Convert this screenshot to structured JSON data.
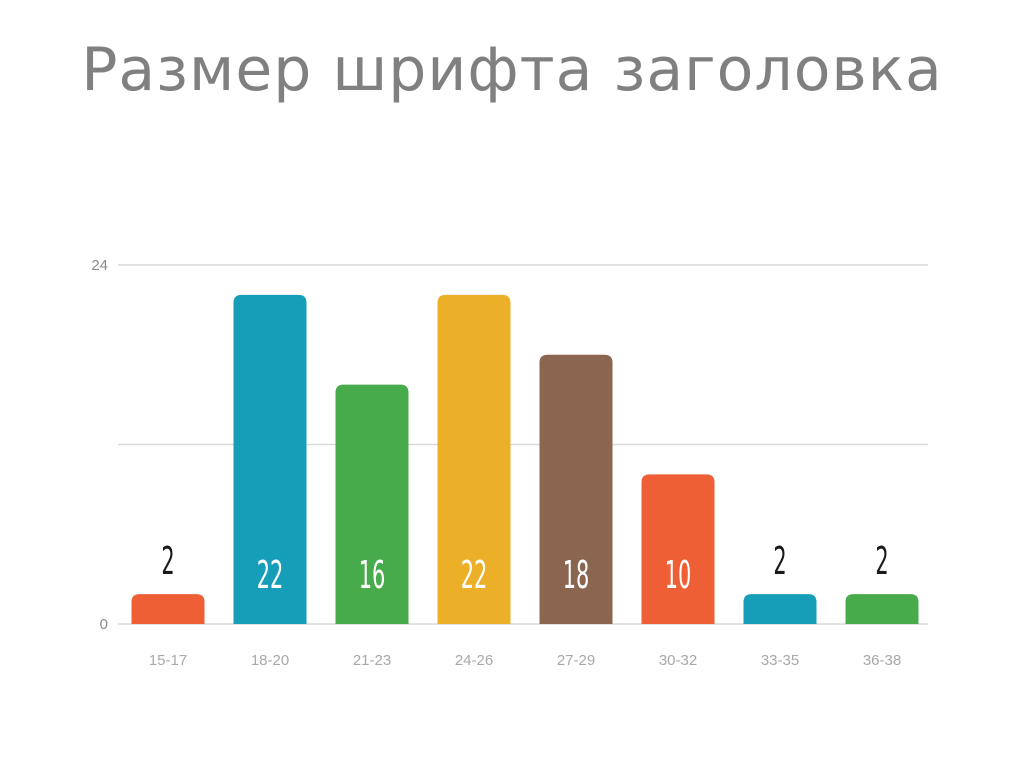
{
  "slide": {
    "title": "Размер шрифта заголовка"
  },
  "chart_data": {
    "type": "bar",
    "title": "Размер шрифта заголовка",
    "xlabel": "",
    "ylabel": "",
    "categories": [
      "15-17",
      "18-20",
      "21-23",
      "24-26",
      "27-29",
      "30-32",
      "33-35",
      "36-38"
    ],
    "values": [
      2,
      22,
      16,
      22,
      18,
      10,
      2,
      2
    ],
    "ylim": [
      0,
      24
    ],
    "yticks": [
      0,
      24
    ],
    "grid": true,
    "legend": "none",
    "colors": [
      "#ef5f35",
      "#169eb9",
      "#47ab4b",
      "#ebb028",
      "#8b6550",
      "#ef5f35",
      "#169eb9",
      "#47ab4b"
    ],
    "label_color_inside": "#ffffff",
    "label_color_outside": "#1a1a1a",
    "grid_color": "#d9d9d9"
  }
}
